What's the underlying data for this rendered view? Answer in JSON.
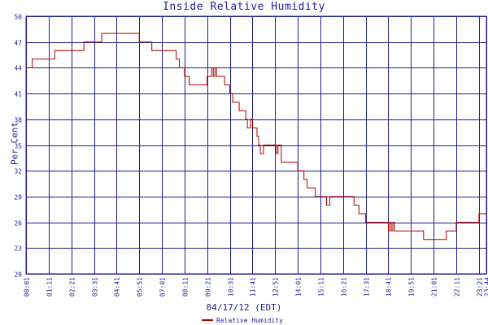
{
  "chart_data": {
    "type": "line",
    "title": "Inside Relative Humidity",
    "xlabel": "04/17/12 (EDT)",
    "ylabel": "Per Cent",
    "ylim": [
      20,
      50
    ],
    "yticks": [
      20,
      23,
      26,
      29,
      32,
      35,
      38,
      41,
      44,
      47,
      50
    ],
    "xticks": [
      "00:01",
      "01:11",
      "02:21",
      "03:31",
      "04:41",
      "05:51",
      "07:01",
      "08:11",
      "09:21",
      "10:31",
      "11:41",
      "12:51",
      "14:01",
      "15:11",
      "16:21",
      "17:31",
      "18:41",
      "19:51",
      "21:01",
      "22:11",
      "23:21",
      "23:44"
    ],
    "grid": true,
    "legend_position": "bottom",
    "series": [
      {
        "name": "Relative Humidity",
        "color": "#b00000",
        "x": [
          "00:01",
          "00:12",
          "00:20",
          "01:11",
          "01:30",
          "02:21",
          "02:45",
          "03:00",
          "03:31",
          "03:55",
          "04:41",
          "05:20",
          "05:51",
          "06:10",
          "06:30",
          "07:01",
          "07:20",
          "07:45",
          "07:55",
          "08:11",
          "08:25",
          "08:40",
          "09:00",
          "09:21",
          "09:30",
          "09:35",
          "09:40",
          "09:45",
          "09:50",
          "10:00",
          "10:15",
          "10:31",
          "10:40",
          "10:50",
          "11:00",
          "11:10",
          "11:20",
          "11:25",
          "11:35",
          "11:41",
          "11:55",
          "12:00",
          "12:05",
          "12:15",
          "12:30",
          "12:51",
          "12:55",
          "13:00",
          "13:10",
          "13:20",
          "13:40",
          "14:01",
          "14:10",
          "14:20",
          "14:30",
          "14:40",
          "14:55",
          "15:11",
          "15:20",
          "15:30",
          "15:40",
          "15:55",
          "16:05",
          "16:21",
          "16:40",
          "16:55",
          "17:05",
          "17:10",
          "17:20",
          "17:31",
          "17:45",
          "17:55",
          "18:10",
          "18:20",
          "18:35",
          "18:41",
          "18:45",
          "18:50",
          "18:55",
          "19:00",
          "19:10",
          "19:51",
          "20:10",
          "20:30",
          "20:50",
          "21:01",
          "21:20",
          "21:40",
          "22:00",
          "22:11",
          "22:40",
          "23:00",
          "23:21",
          "23:44"
        ],
        "values": [
          44,
          44,
          45,
          45,
          46,
          46,
          46,
          47,
          47,
          48,
          48,
          48,
          47,
          47,
          46,
          46,
          46,
          45,
          44,
          43,
          42,
          42,
          42,
          43,
          43,
          44,
          43,
          44,
          43,
          43,
          42,
          41,
          40,
          40,
          39,
          39,
          38,
          37,
          38,
          37,
          36,
          35,
          34,
          35,
          35,
          35,
          34,
          35,
          33,
          33,
          33,
          32,
          32,
          31,
          30,
          30,
          29,
          29,
          29,
          28,
          29,
          29,
          29,
          29,
          29,
          28,
          28,
          27,
          27,
          26,
          26,
          26,
          26,
          26,
          26,
          25,
          26,
          25,
          26,
          25,
          25,
          25,
          25,
          24,
          24,
          24,
          24,
          25,
          25,
          26,
          26,
          26,
          27,
          27
        ]
      }
    ]
  }
}
